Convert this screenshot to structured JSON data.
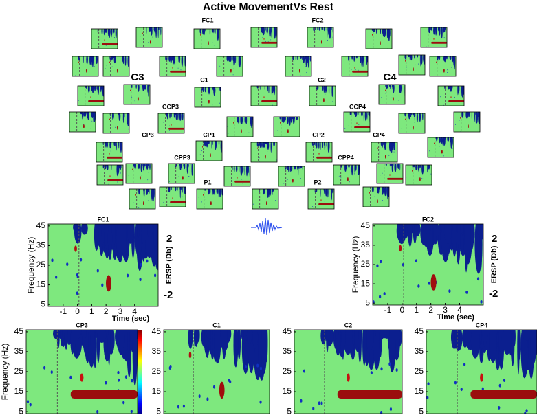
{
  "title": "Active MovementVs Rest",
  "electrodes": [
    {
      "label": "FC1"
    },
    {
      "label": "FC2"
    },
    {
      "label": "C3"
    },
    {
      "label": "C1"
    },
    {
      "label": "C2"
    },
    {
      "label": "C4"
    },
    {
      "label": "CCP3"
    },
    {
      "label": "CCP4"
    },
    {
      "label": "CP3"
    },
    {
      "label": "CP1"
    },
    {
      "label": "CP2"
    },
    {
      "label": "CP4"
    },
    {
      "label": "CPP3"
    },
    {
      "label": "CPP4"
    },
    {
      "label": "P1"
    },
    {
      "label": "P2"
    }
  ],
  "detail_panels": [
    {
      "title": "FC1",
      "y_label": "Frequency (Hz)",
      "x_label": "Time (sec)",
      "yticks": [
        45,
        35,
        25,
        15,
        5
      ],
      "xticks": [
        -1,
        0,
        1,
        2,
        3,
        4
      ],
      "scale_label": "ERSP (Db)",
      "scale_max": 2,
      "scale_min": -2
    },
    {
      "title": "FC2",
      "y_label": "Frequency (Hz)",
      "x_label": "Time (sec)",
      "yticks": [
        45,
        35,
        25,
        15,
        5
      ],
      "xticks": [
        -1,
        0,
        1,
        2,
        3,
        4
      ],
      "scale_label": "ERSP (Db)",
      "scale_max": 2,
      "scale_min": -2
    }
  ],
  "bottom_panels": [
    {
      "title": "CP3",
      "yticks": [
        45,
        35,
        25,
        15,
        5
      ]
    },
    {
      "title": "C1",
      "yticks": [
        45,
        35,
        25,
        15,
        5
      ]
    },
    {
      "title": "C2",
      "yticks": [
        45,
        35,
        25,
        15,
        5
      ]
    },
    {
      "title": "CP4",
      "yticks": [
        45,
        35,
        25,
        15,
        5
      ]
    }
  ],
  "bottom_y_label": "Frequency (Hz)"
}
